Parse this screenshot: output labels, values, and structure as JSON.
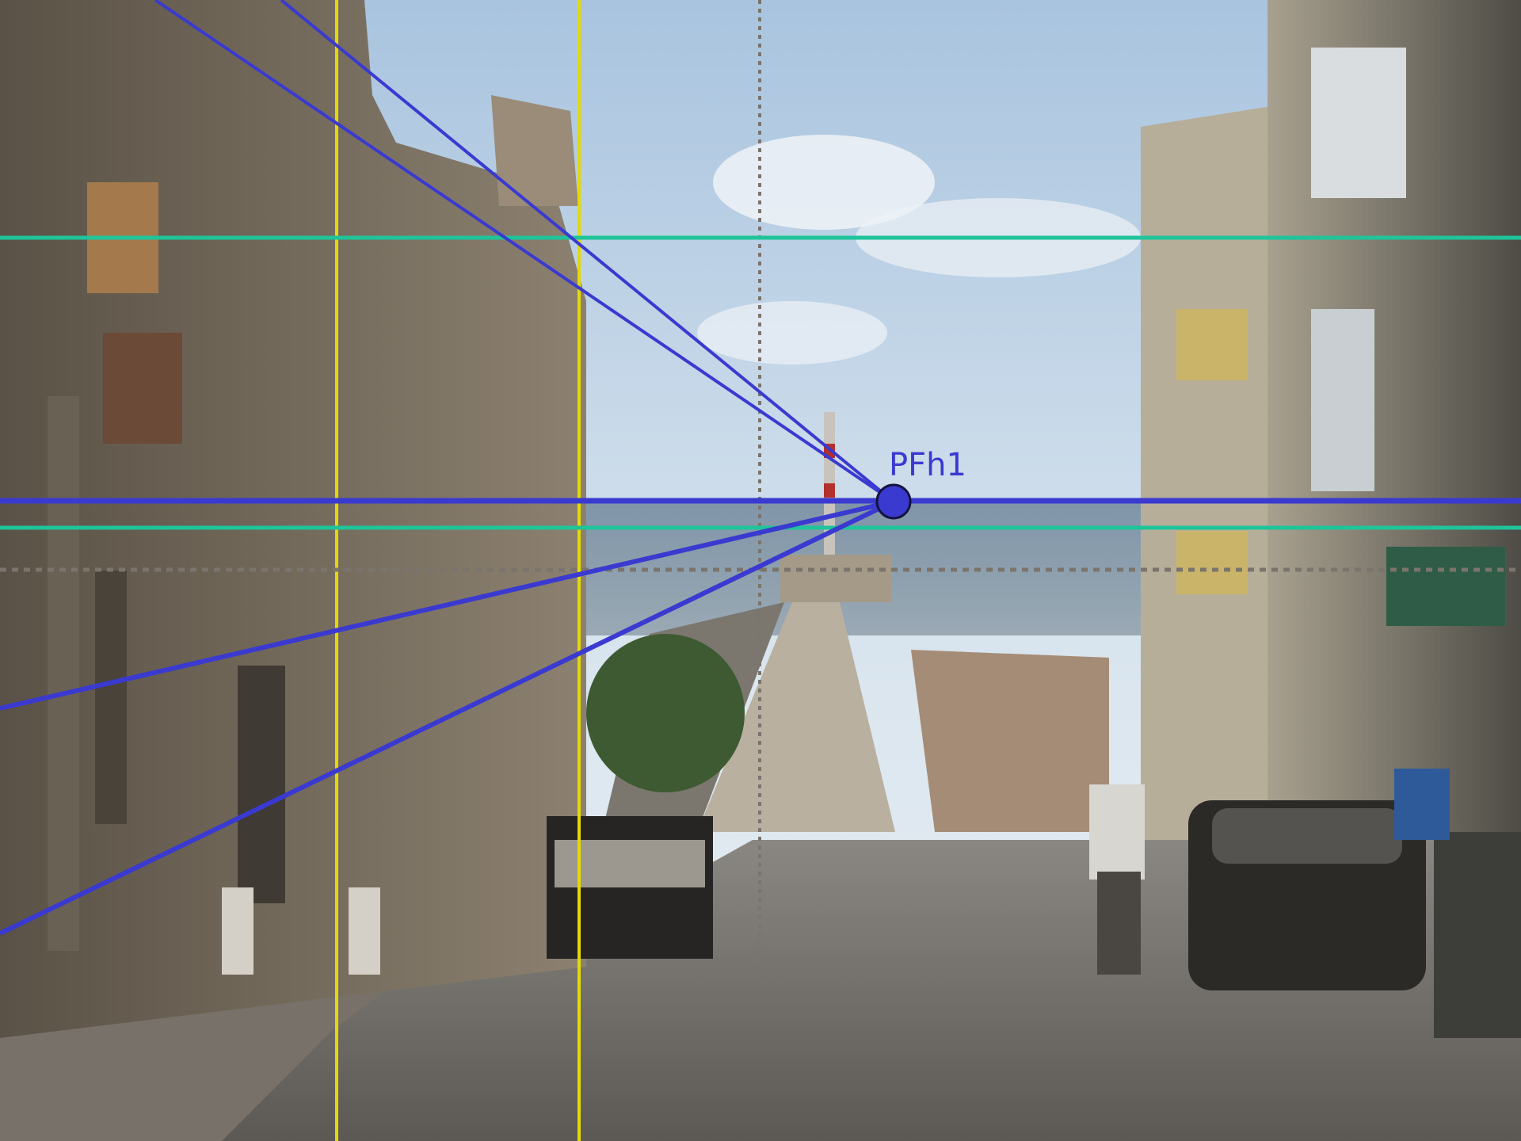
{
  "vanishing_point": {
    "label": "PFh1"
  }
}
